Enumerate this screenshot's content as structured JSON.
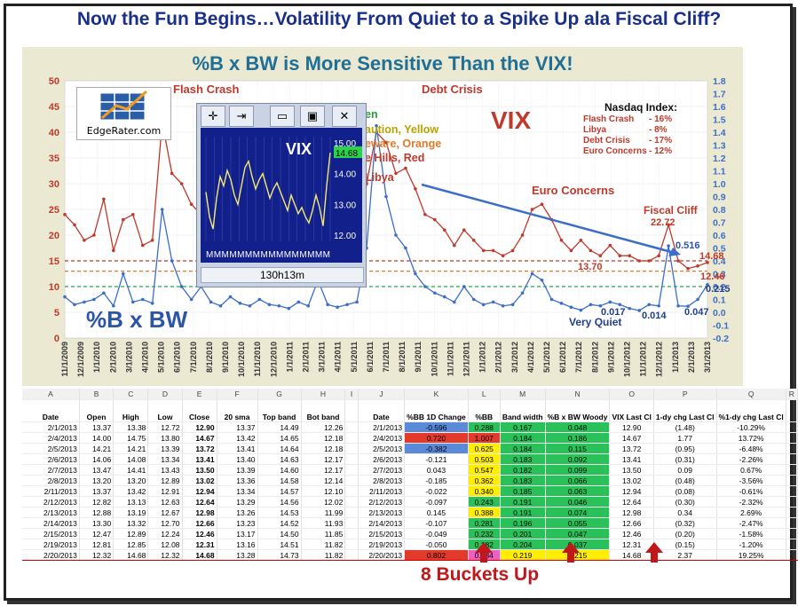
{
  "headline": "Now the Fun Begins…Volatility From Quiet to a Spike Up ala Fiscal Cliff?",
  "chart_data": {
    "type": "line",
    "title": "%B x BW is More Sensitive Than the VIX!",
    "left_axis": {
      "ticks": [
        "0",
        "5",
        "10",
        "15",
        "20",
        "25",
        "30",
        "35",
        "40",
        "45",
        "50"
      ],
      "range": [
        0,
        50
      ]
    },
    "right_axis": {
      "ticks": [
        "-0.2",
        "-0.1",
        "0.0",
        "0.1",
        "0.2",
        "0.3",
        "0.4",
        "0.5",
        "0.6",
        "0.7",
        "0.8",
        "0.9",
        "1.0",
        "1.1",
        "1.2",
        "1.3",
        "1.4",
        "1.5",
        "1.6",
        "1.7",
        "1.8"
      ],
      "range": [
        -0.2,
        1.8
      ]
    },
    "x_ticks": [
      "11/1/2009",
      "12/1/2009",
      "1/1/2010",
      "2/1/2010",
      "3/1/2010",
      "4/1/2010",
      "5/1/2010",
      "6/1/2010",
      "7/1/2010",
      "8/1/2010",
      "9/1/2010",
      "10/1/2010",
      "11/1/2010",
      "12/1/2010",
      "1/1/2011",
      "2/1/2011",
      "3/1/2011",
      "4/1/2011",
      "5/1/2011",
      "6/1/2011",
      "7/1/2011",
      "8/1/2011",
      "9/1/2011",
      "10/1/2011",
      "11/1/2011",
      "12/1/2011",
      "1/1/2012",
      "2/1/2012",
      "3/1/2012",
      "4/1/2012",
      "5/1/2012",
      "6/1/2012",
      "7/1/2012",
      "8/1/2012",
      "9/1/2012",
      "10/1/2012",
      "11/1/2012",
      "12/1/2012",
      "1/1/2013",
      "2/1/2013",
      "3/1/2013"
    ],
    "series": [
      {
        "name": "VIX",
        "color": "#c0392b",
        "axis": "left",
        "values": [
          24,
          22,
          19,
          20,
          27,
          17,
          23,
          24,
          18,
          19,
          42,
          32,
          30,
          26,
          24,
          23,
          22,
          24,
          22,
          20,
          21,
          19,
          17,
          17,
          18,
          16,
          23,
          17,
          17,
          16,
          17,
          30,
          40,
          38,
          32,
          33,
          29,
          24,
          23,
          21,
          18,
          21,
          19,
          17,
          17,
          16,
          17,
          20,
          25,
          26,
          23,
          19,
          17,
          19,
          17,
          16,
          18,
          16,
          16,
          15,
          15,
          16,
          22,
          15,
          13.5,
          14,
          14.68
        ]
      },
      {
        "name": "%B x BW",
        "color": "#3b6ec9",
        "axis": "right",
        "values": [
          0.12,
          0.06,
          0.08,
          0.1,
          0.15,
          0.05,
          0.3,
          0.08,
          0.1,
          0.07,
          0.8,
          0.4,
          0.2,
          0.1,
          0.2,
          0.08,
          0.05,
          0.12,
          0.07,
          0.05,
          0.1,
          0.06,
          0.05,
          0.03,
          0.08,
          0.05,
          0.25,
          0.06,
          0.04,
          0.06,
          0.08,
          0.5,
          1.45,
          0.9,
          0.6,
          0.5,
          0.3,
          0.2,
          0.15,
          0.12,
          0.08,
          0.2,
          0.1,
          0.06,
          0.08,
          0.05,
          0.06,
          0.15,
          0.3,
          0.25,
          0.1,
          0.07,
          0.04,
          0.017,
          0.06,
          0.05,
          0.08,
          0.06,
          0.03,
          0.014,
          0.06,
          0.05,
          0.516,
          0.05,
          0.047,
          0.1,
          0.215
        ]
      }
    ],
    "annotations": [
      "Flash Crash",
      "Debt Crisis",
      "Euro Concerns",
      "Fiscal Cliff",
      "Very Quiet",
      "VIX",
      "%B x BW",
      "22.72",
      "0.516",
      "14.68",
      "13.70",
      "12.46",
      "0.215",
      "0.017",
      "0.014",
      "0.047"
    ],
    "legend_box": {
      "title": "Nasdaq  Index:",
      "items": [
        [
          "Flash Crash",
          "- 16%"
        ],
        [
          "Libya",
          "-  8%"
        ],
        [
          "Debt Crisis",
          "- 17%"
        ],
        [
          "Euro Concerns",
          "- 12%"
        ]
      ]
    },
    "partial_labels": [
      "en",
      "aution, Yellow",
      "eware, Orange",
      "e Hills, Red",
      "Libya"
    ],
    "reference_lines": [
      {
        "value": 15,
        "color": "#c0392b"
      },
      {
        "value": 13,
        "color": "#e07a2a"
      },
      {
        "value": 10,
        "color": "#2aa84a"
      }
    ]
  },
  "mini_window": {
    "series_label": "VIX",
    "y_ticks": [
      "15.00",
      "14.00",
      "13.00",
      "12.00"
    ],
    "last_value": "14.68",
    "x_labels": "MMMMMMMMMMMMMMMM",
    "scroll_label": "130h13m",
    "values": [
      13.4,
      12.6,
      12.2,
      13.2,
      13.9,
      13.6,
      14.1,
      13.8,
      13.3,
      13.0,
      13.6,
      14.2,
      14.4,
      13.9,
      13.5,
      13.8,
      14.0,
      13.6,
      13.2,
      13.5,
      13.7,
      13.4,
      13.1,
      12.8,
      13.3,
      13.0,
      12.7,
      12.9,
      12.6,
      12.4,
      12.8,
      13.3,
      12.9,
      12.3,
      13.6,
      14.68
    ]
  },
  "logo": {
    "name": "EdgeRater.com"
  },
  "table": {
    "letters": [
      "A",
      "B",
      "C",
      "D",
      "E",
      "F",
      "G",
      "H",
      "I",
      "J",
      "K",
      "L",
      "M",
      "N",
      "O",
      "P",
      "Q",
      "R"
    ],
    "headers": [
      "Date",
      "Open",
      "High",
      "Low",
      "Close",
      "20 sma",
      "Top band",
      "Bot band",
      "",
      "Date",
      "%BB 1D Change",
      "%BB",
      "Band width",
      "%B x BW Woody",
      "VIX Last Cl",
      "1-dy chg Last Cl",
      "%1-dy chg Last Cl",
      ""
    ],
    "rows": [
      [
        "2/1/2013",
        "13.37",
        "13.38",
        "12.72",
        "12.90",
        "13.37",
        "14.49",
        "12.26",
        "",
        "2/1/2013",
        "-0.596",
        "0.288",
        "0.167",
        "0.048",
        "12.90",
        "(1.48)",
        "-10.29%"
      ],
      [
        "2/4/2013",
        "14.00",
        "14.75",
        "13.80",
        "14.67",
        "13.42",
        "14.65",
        "12.18",
        "",
        "2/4/2013",
        "0.720",
        "1.007",
        "0.184",
        "0.186",
        "14.67",
        "1.77",
        "13.72%"
      ],
      [
        "2/5/2013",
        "14.21",
        "14.21",
        "13.39",
        "13.72",
        "13.41",
        "14.64",
        "12.18",
        "",
        "2/5/2013",
        "-0.382",
        "0.625",
        "0.184",
        "0.115",
        "13.72",
        "(0.95)",
        "-6.48%"
      ],
      [
        "2/6/2013",
        "14.06",
        "14.08",
        "13.34",
        "13.41",
        "13.40",
        "14.63",
        "12.17",
        "",
        "2/6/2013",
        "-0.121",
        "0.503",
        "0.183",
        "0.092",
        "13.41",
        "(0.31)",
        "-2.26%"
      ],
      [
        "2/7/2013",
        "13.47",
        "14.41",
        "13.43",
        "13.50",
        "13.39",
        "14.60",
        "12.17",
        "",
        "2/7/2013",
        "0.043",
        "0.547",
        "0.182",
        "0.099",
        "13.50",
        "0.09",
        "0.67%"
      ],
      [
        "2/8/2013",
        "13.20",
        "13.20",
        "12.89",
        "13.02",
        "13.36",
        "14.58",
        "12.14",
        "",
        "2/8/2013",
        "-0.185",
        "0.362",
        "0.183",
        "0.066",
        "13.02",
        "(0.48)",
        "-3.56%"
      ],
      [
        "2/11/2013",
        "13.37",
        "13.42",
        "12.91",
        "12.94",
        "13.34",
        "14.57",
        "12.10",
        "",
        "2/11/2013",
        "-0.022",
        "0.340",
        "0.185",
        "0.063",
        "12.94",
        "(0.08)",
        "-0.61%"
      ],
      [
        "2/12/2013",
        "12.82",
        "13.13",
        "12.63",
        "12.64",
        "13.29",
        "14.56",
        "12.02",
        "",
        "2/12/2013",
        "-0.097",
        "0.243",
        "0.191",
        "0.046",
        "12.64",
        "(0.30)",
        "-2.32%"
      ],
      [
        "2/13/2013",
        "12.88",
        "13.19",
        "12.67",
        "12.98",
        "13.26",
        "14.53",
        "11.99",
        "",
        "2/13/2013",
        "0.145",
        "0.388",
        "0.191",
        "0.074",
        "12.98",
        "0.34",
        "2.69%"
      ],
      [
        "2/14/2013",
        "13.30",
        "13.32",
        "12.70",
        "12.66",
        "13.23",
        "14.52",
        "11.93",
        "",
        "2/14/2013",
        "-0.107",
        "0.281",
        "0.196",
        "0.055",
        "12.66",
        "(0.32)",
        "-2.47%"
      ],
      [
        "2/15/2013",
        "12.47",
        "12.89",
        "12.24",
        "12.46",
        "13.17",
        "14.50",
        "11.85",
        "",
        "2/15/2013",
        "-0.049",
        "0.232",
        "0.201",
        "0.047",
        "12.46",
        "(0.20)",
        "-1.58%"
      ],
      [
        "2/19/2013",
        "12.81",
        "12.85",
        "12.08",
        "12.31",
        "13.16",
        "14.51",
        "11.82",
        "",
        "2/19/2013",
        "-0.050",
        "0.182",
        "0.204",
        "0.037",
        "12.31",
        "(0.15)",
        "-1.20%"
      ],
      [
        "2/20/2013",
        "12.32",
        "14.68",
        "12.32",
        "14.68",
        "13.28",
        "14.73",
        "11.82",
        "",
        "2/20/2013",
        "0.802",
        "0.984",
        "0.219",
        "0.215",
        "14.68",
        "2.37",
        "19.25%"
      ]
    ],
    "highlights": {
      "K": [
        "blue",
        "red",
        "blue",
        "",
        "",
        "",
        "",
        "",
        "",
        "",
        "",
        "",
        "red"
      ],
      "L": [
        "green",
        "red",
        "yellow",
        "yellow",
        "yellow",
        "yellow",
        "yellow",
        "green",
        "yellow",
        "green",
        "green",
        "green",
        "pink"
      ],
      "M": [
        "green",
        "green",
        "green",
        "green",
        "green",
        "green",
        "green",
        "green",
        "green",
        "green",
        "green",
        "green",
        "yellow"
      ],
      "N": [
        "green",
        "green",
        "green",
        "green",
        "green",
        "green",
        "green",
        "green",
        "green",
        "green",
        "green",
        "green",
        "yellow"
      ]
    }
  },
  "footer": "8 Buckets Up"
}
